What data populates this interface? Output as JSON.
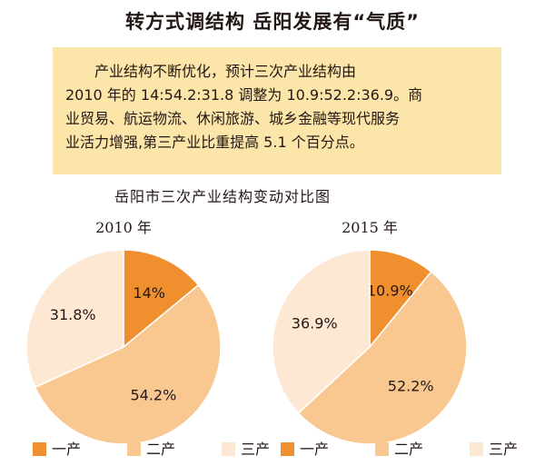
{
  "headline": "转方式调结构  岳阳发展有“气质”",
  "summary": {
    "lines": [
      "产业结构不断优化，预计三次产业结构由",
      "2010 年的 14:54.2:31.8 调整为 10.9:52.2:36.9。商",
      "业贸易、航运物流、休闲旅游、城乡金融等现代服务",
      "业活力增强,第三产业比重提高 5.1 个百分点。"
    ]
  },
  "colors": {
    "first": "#ef8f2e",
    "second": "#f9c891",
    "third": "#fde9d3",
    "box_background": "#fbe5a8"
  },
  "chart_data": [
    {
      "type": "pie",
      "title": "岳阳市三次产业结构变动对比图",
      "year_label": "2010 年",
      "categories": [
        "一产",
        "二产",
        "三产"
      ],
      "values": [
        14,
        54.2,
        31.8
      ],
      "value_labels": [
        "14%",
        "54.2%",
        "31.8%"
      ],
      "legend_placement": "bottom"
    },
    {
      "type": "pie",
      "title": "岳阳市三次产业结构变动对比图",
      "year_label": "2015 年",
      "categories": [
        "一产",
        "二产",
        "三产"
      ],
      "values": [
        10.9,
        52.2,
        36.9
      ],
      "value_labels": [
        "10.9%",
        "52.2%",
        "36.9%"
      ],
      "legend_placement": "bottom"
    }
  ]
}
